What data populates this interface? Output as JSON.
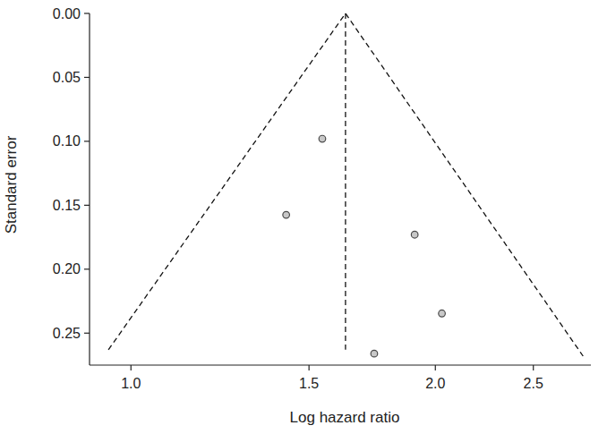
{
  "chart_data": {
    "type": "scatter",
    "x_label": "Log hazard ratio",
    "y_label": "Standard error",
    "x": [
      1.546,
      1.424,
      1.908,
      2.03,
      1.74
    ],
    "values": [
      0.098,
      0.1575,
      0.173,
      0.2346,
      0.266
    ],
    "color": "#c8c8c8",
    "marker": "circle",
    "log": "x",
    "grid": false,
    "line_style": "dashed",
    "pooled": {
      "x": [
        1.63,
        1.63
      ],
      "y": [
        0,
        0.263
      ]
    },
    "funnel": {
      "x": [
        0.95,
        1.63,
        2.8
      ],
      "y": [
        0.263,
        0,
        0.268
      ]
    },
    "xlim": [
      0.91,
      2.85
    ],
    "xticks": [
      {
        "value": 1,
        "label": "1.0"
      },
      1.5,
      {
        "value": 2,
        "label": "2.0"
      },
      2.5
    ],
    "ylim": [
      0,
      0.275
    ],
    "yticks": [
      {
        "value": 0,
        "label": "0.00"
      },
      {
        "value": 0.05,
        "label": "0.05"
      },
      {
        "value": 0.1,
        "label": "0.10"
      },
      {
        "value": 0.15,
        "label": "0.15"
      },
      {
        "value": 0.2,
        "label": "0.20"
      },
      0.25
    ]
  }
}
